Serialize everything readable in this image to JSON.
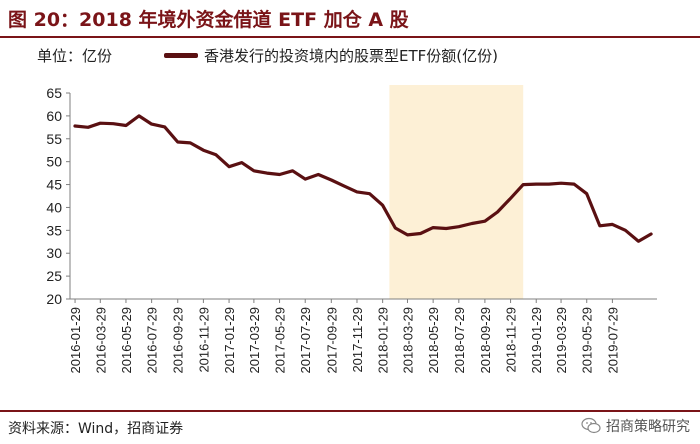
{
  "figure": {
    "title": "图 20：2018 年境外资金借道 ETF 加仓 A 股",
    "unit": "单位：亿份",
    "source": "资料来源：Wind，招商证券",
    "watermark": "招商策略研究"
  },
  "colors": {
    "title": "#7a1418",
    "series": "#5a1012",
    "highlight": "#fdf0d6",
    "axis": "#7f7f7f"
  },
  "chart_data": {
    "type": "line",
    "title": "",
    "xlabel": "",
    "ylabel": "",
    "ylim": [
      20,
      65
    ],
    "yticks": [
      "20",
      "25",
      "30",
      "35",
      "40",
      "45",
      "50",
      "55",
      "60",
      "65"
    ],
    "xticks": [
      "2016-01-29",
      "2016-03-29",
      "2016-05-29",
      "2016-07-29",
      "2016-09-29",
      "2016-11-29",
      "2017-01-29",
      "2017-03-29",
      "2017-05-29",
      "2017-07-29",
      "2017-09-29",
      "2017-11-29",
      "2018-01-29",
      "2018-03-29",
      "2018-05-29",
      "2018-07-29",
      "2018-09-29",
      "2018-11-29",
      "2019-01-29",
      "2019-03-29",
      "2019-05-29",
      "2019-07-29"
    ],
    "grid": false,
    "legend_position": "top",
    "highlight_range": [
      "2018-02-14",
      "2018-12-29"
    ],
    "series": [
      {
        "name": "香港发行的投资境内的股票型ETF份额(亿份)",
        "points": [
          [
            "2016-01-29",
            57.8
          ],
          [
            "2016-02-29",
            57.5
          ],
          [
            "2016-03-29",
            58.4
          ],
          [
            "2016-04-29",
            58.3
          ],
          [
            "2016-05-29",
            57.9
          ],
          [
            "2016-06-29",
            60.0
          ],
          [
            "2016-07-29",
            58.2
          ],
          [
            "2016-08-29",
            57.6
          ],
          [
            "2016-09-29",
            54.3
          ],
          [
            "2016-10-29",
            54.1
          ],
          [
            "2016-11-29",
            52.5
          ],
          [
            "2016-12-29",
            51.5
          ],
          [
            "2017-01-29",
            48.9
          ],
          [
            "2017-02-28",
            49.8
          ],
          [
            "2017-03-29",
            48.0
          ],
          [
            "2017-04-29",
            47.5
          ],
          [
            "2017-05-29",
            47.2
          ],
          [
            "2017-06-29",
            48.0
          ],
          [
            "2017-07-29",
            46.2
          ],
          [
            "2017-08-29",
            47.2
          ],
          [
            "2017-09-29",
            46.0
          ],
          [
            "2017-10-29",
            44.7
          ],
          [
            "2017-11-29",
            43.4
          ],
          [
            "2017-12-29",
            43.0
          ],
          [
            "2018-01-29",
            40.5
          ],
          [
            "2018-02-28",
            35.5
          ],
          [
            "2018-03-29",
            34.0
          ],
          [
            "2018-04-29",
            34.3
          ],
          [
            "2018-05-29",
            35.6
          ],
          [
            "2018-06-29",
            35.4
          ],
          [
            "2018-07-29",
            35.8
          ],
          [
            "2018-08-29",
            36.5
          ],
          [
            "2018-09-29",
            37.0
          ],
          [
            "2018-10-29",
            39.0
          ],
          [
            "2018-11-29",
            42.0
          ],
          [
            "2018-12-29",
            45.0
          ],
          [
            "2019-01-29",
            45.1
          ],
          [
            "2019-02-28",
            45.1
          ],
          [
            "2019-03-29",
            45.3
          ],
          [
            "2019-04-29",
            45.1
          ],
          [
            "2019-05-29",
            43.0
          ],
          [
            "2019-06-29",
            36.0
          ],
          [
            "2019-07-29",
            36.3
          ],
          [
            "2019-08-29",
            35.0
          ],
          [
            "2019-09-29",
            32.6
          ],
          [
            "2019-10-29",
            34.2
          ]
        ]
      }
    ]
  }
}
